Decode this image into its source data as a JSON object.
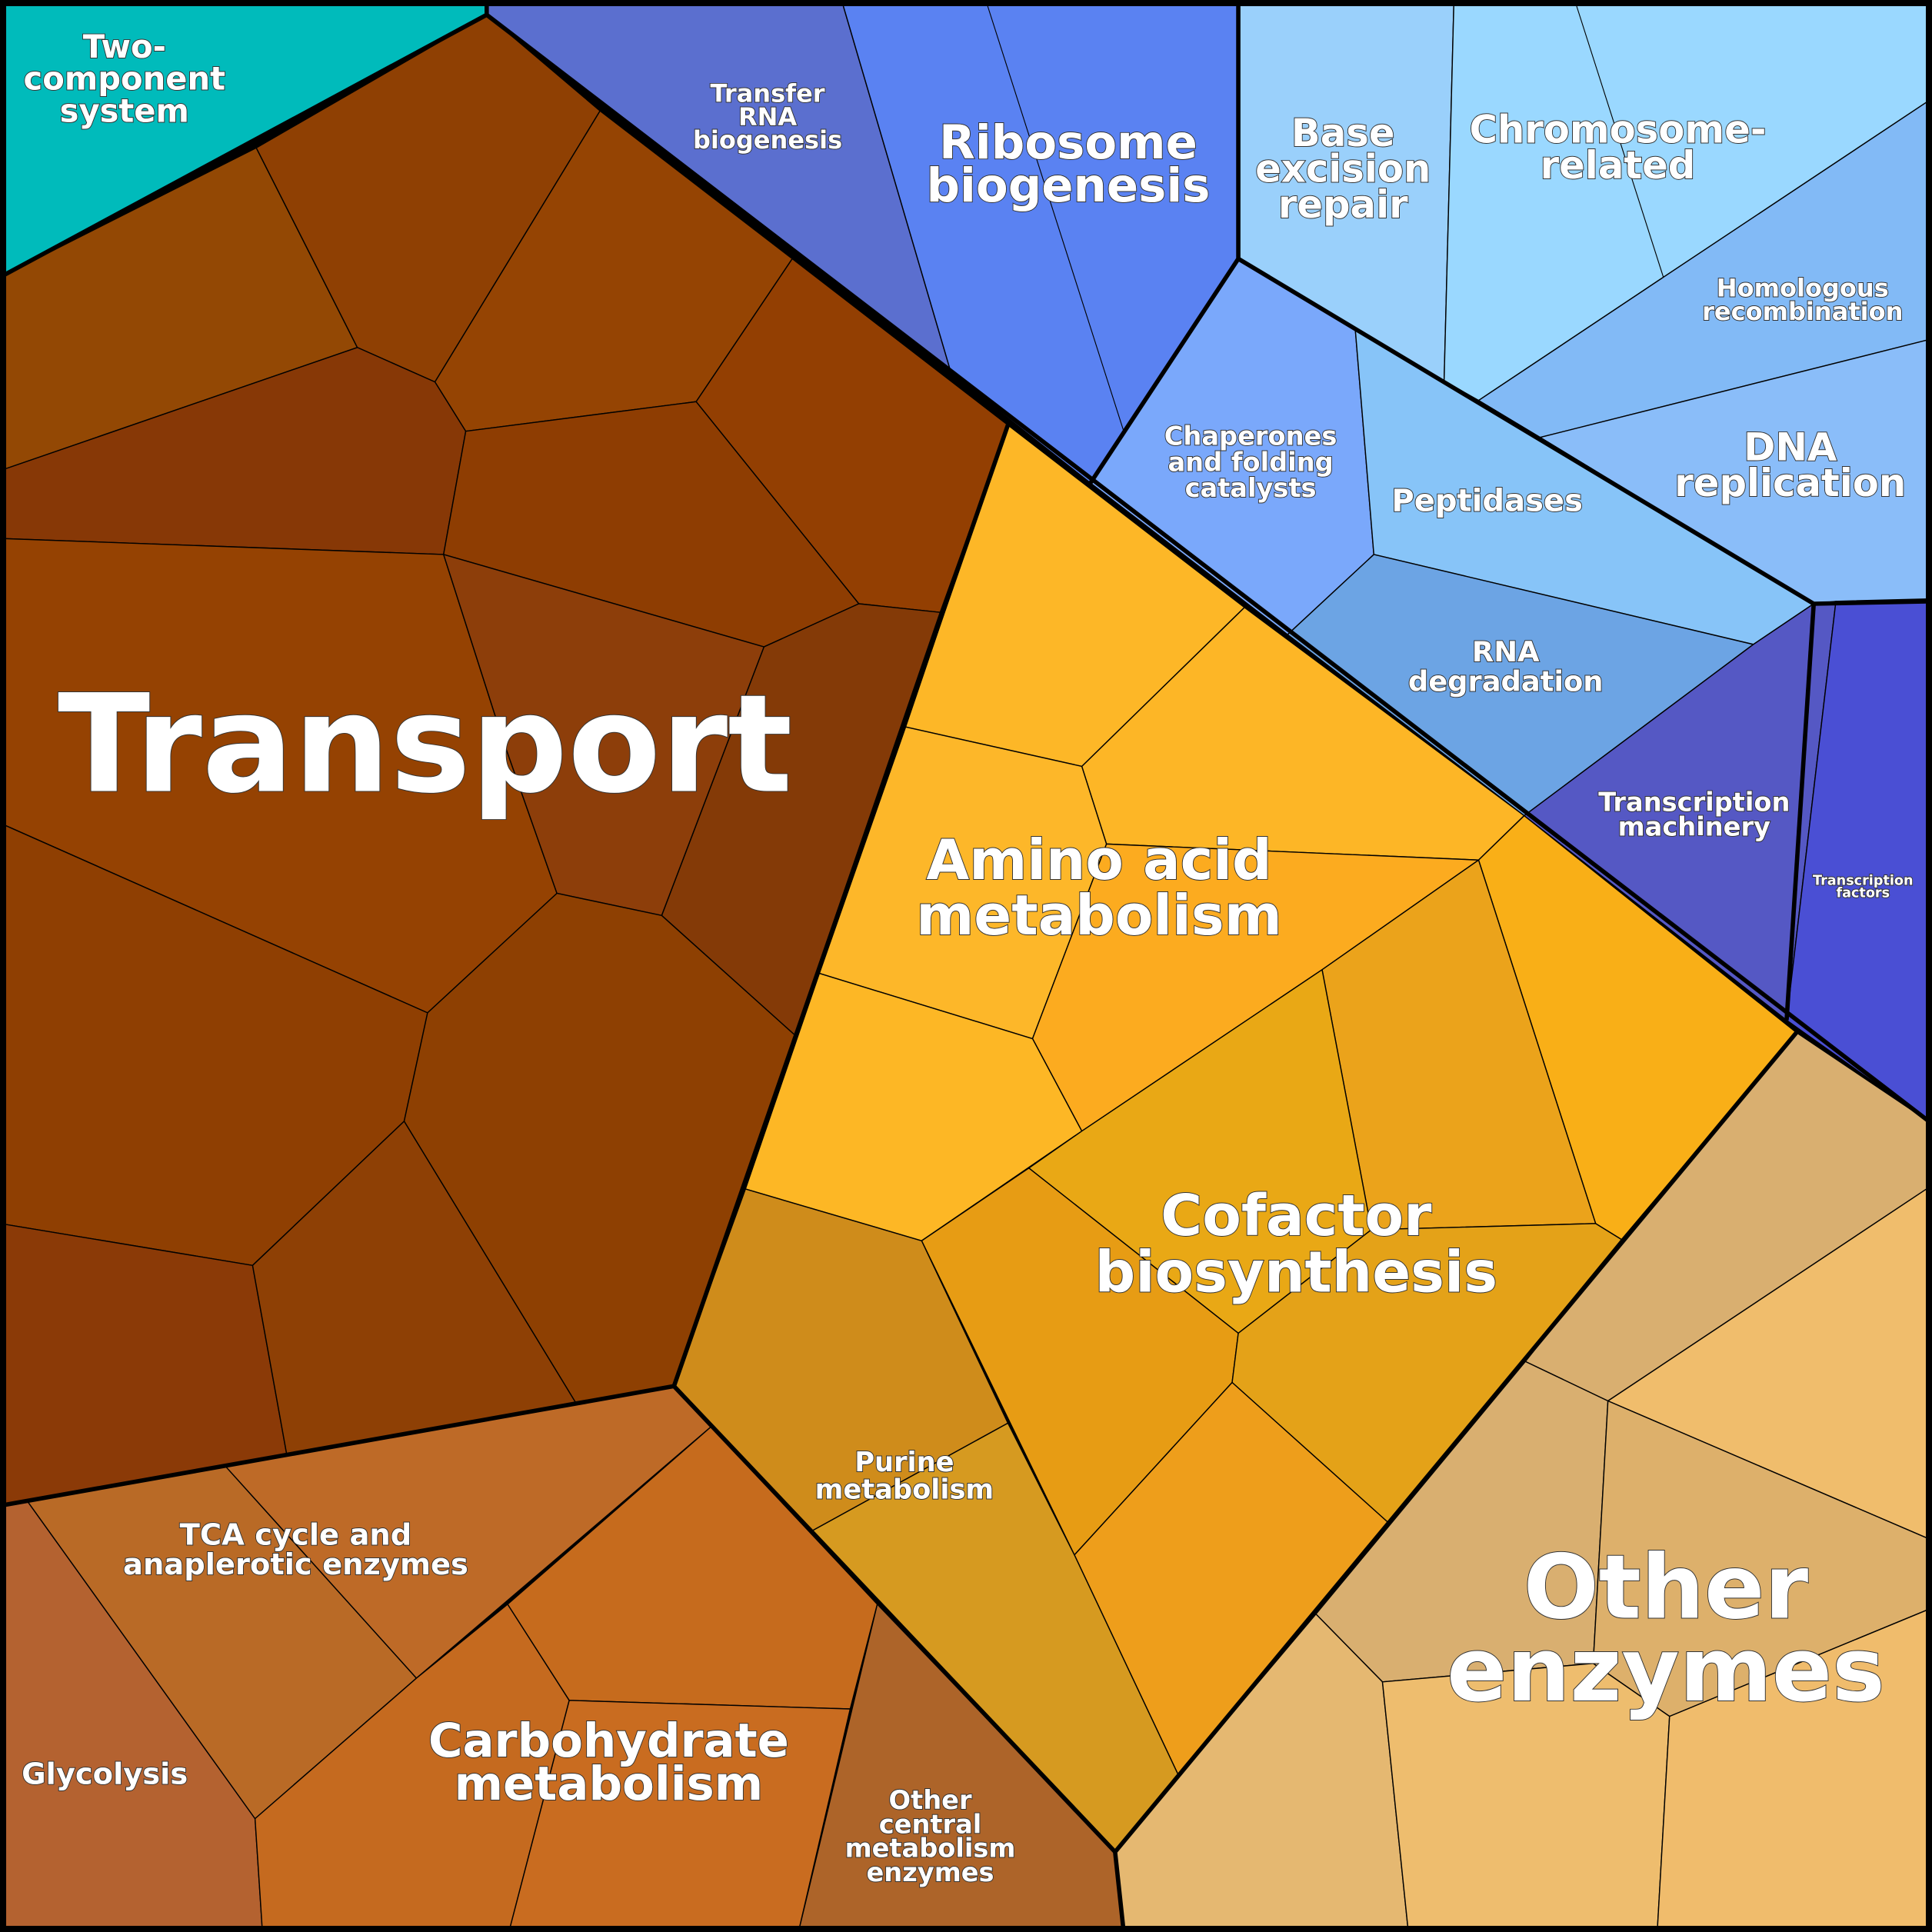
{
  "cells": [
    {
      "lines": [
        "Two-",
        "component",
        "system"
      ]
    },
    {
      "lines": [
        "Transport"
      ]
    },
    {
      "lines": [
        "Transfer",
        "RNA",
        "biogenesis"
      ]
    },
    {
      "lines": [
        "Ribosome",
        "biogenesis"
      ]
    },
    {
      "lines": [
        "Base",
        "excision",
        "repair"
      ]
    },
    {
      "lines": [
        "Chromosome-",
        "related"
      ]
    },
    {
      "lines": [
        "Homologous",
        "recombination"
      ]
    },
    {
      "lines": [
        "DNA",
        "replication"
      ]
    },
    {
      "lines": [
        "Chaperones",
        "and folding",
        "catalysts"
      ]
    },
    {
      "lines": [
        "Peptidases"
      ]
    },
    {
      "lines": [
        "RNA",
        "degradation"
      ]
    },
    {
      "lines": [
        "Transcription",
        "machinery"
      ]
    },
    {
      "lines": [
        "Transcription",
        "factors"
      ]
    },
    {
      "lines": [
        "Amino acid",
        "metabolism"
      ]
    },
    {
      "lines": [
        "Cofactor",
        "biosynthesis"
      ]
    },
    {
      "lines": [
        "Purine",
        "metabolism"
      ]
    },
    {
      "lines": [
        "TCA cycle and",
        "anaplerotic enzymes"
      ]
    },
    {
      "lines": [
        "Glycolysis"
      ]
    },
    {
      "lines": [
        "Carbohydrate",
        "metabolism"
      ]
    },
    {
      "lines": [
        "Other",
        "central",
        "metabolism",
        "enzymes"
      ]
    },
    {
      "lines": [
        "Other",
        "enzymes"
      ]
    }
  ]
}
